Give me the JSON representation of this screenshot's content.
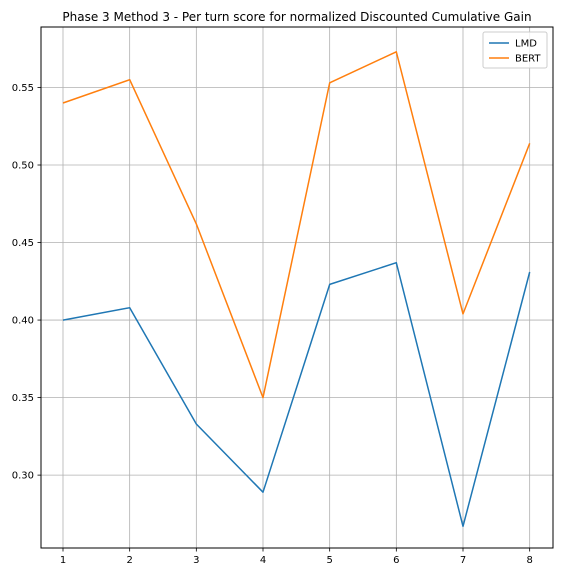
{
  "chart_data": {
    "type": "line",
    "title": "Phase 3 Method 3 - Per turn score for normalized Discounted Cumulative Gain",
    "xlabel": "",
    "ylabel": "",
    "x": [
      1,
      2,
      3,
      4,
      5,
      6,
      7,
      8
    ],
    "x_ticks": [
      "1",
      "2",
      "3",
      "4",
      "5",
      "6",
      "7",
      "8"
    ],
    "y_ticks": [
      "0.30",
      "0.35",
      "0.40",
      "0.45",
      "0.50",
      "0.55"
    ],
    "xlim": [
      0.67,
      8.35
    ],
    "ylim": [
      0.253,
      0.589
    ],
    "grid": true,
    "legend_position": "top-right",
    "series": [
      {
        "name": "LMD",
        "color": "#1f77b4",
        "values": [
          0.4,
          0.408,
          0.333,
          0.289,
          0.423,
          0.437,
          0.267,
          0.431
        ]
      },
      {
        "name": "BERT",
        "color": "#ff7f0e",
        "values": [
          0.54,
          0.555,
          0.462,
          0.35,
          0.553,
          0.573,
          0.404,
          0.514
        ]
      }
    ]
  }
}
